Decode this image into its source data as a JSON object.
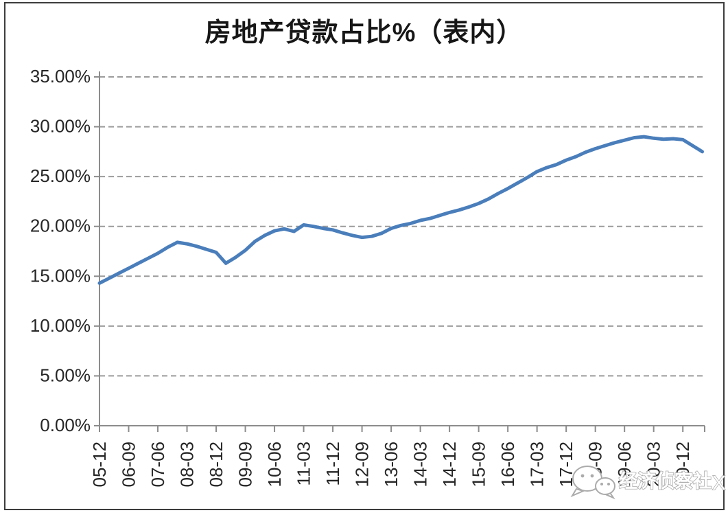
{
  "title": "房地产贷款占比%（表内）",
  "watermark": {
    "icon": "wechat-icon",
    "text": "经济侦察社",
    "suffix": "X"
  },
  "colors": {
    "line": "#4a7ebb",
    "grid": "#9b9b9b",
    "axis": "#8c8c8c",
    "tick_label": "#262626",
    "frame": "#3c3c3c",
    "watermark_outline": "#ababab",
    "watermark_fill": "#ffffff"
  },
  "chart_data": {
    "type": "line",
    "title": "房地产贷款占比%（表内）",
    "xlabel": "",
    "ylabel": "",
    "unit": "percent",
    "ylim": [
      0,
      35
    ],
    "grid": "horizontal-dashed",
    "legend": "none",
    "y_ticks": [
      "0.00%",
      "5.00%",
      "10.00%",
      "15.00%",
      "20.00%",
      "25.00%",
      "30.00%",
      "35.00%"
    ],
    "x_tick_every": 3,
    "x_tick_labels": [
      "05-12",
      "06-09",
      "07-06",
      "08-03",
      "08-12",
      "09-09",
      "10-06",
      "11-03",
      "11-12",
      "12-09",
      "13-06",
      "14-03",
      "14-12",
      "15-09",
      "16-06",
      "17-03",
      "17-12",
      "18-09",
      "19-06",
      "20-03",
      "20-12"
    ],
    "x": [
      "05-12",
      "06-03",
      "06-06",
      "06-09",
      "06-12",
      "07-03",
      "07-06",
      "07-09",
      "07-12",
      "08-03",
      "08-06",
      "08-09",
      "08-12",
      "09-03",
      "09-06",
      "09-09",
      "09-12",
      "10-03",
      "10-06",
      "10-09",
      "10-12",
      "11-03",
      "11-06",
      "11-09",
      "11-12",
      "12-03",
      "12-06",
      "12-09",
      "12-12",
      "13-03",
      "13-06",
      "13-09",
      "13-12",
      "14-03",
      "14-06",
      "14-09",
      "14-12",
      "15-03",
      "15-06",
      "15-09",
      "15-12",
      "16-03",
      "16-06",
      "16-09",
      "16-12",
      "17-03",
      "17-06",
      "17-09",
      "17-12",
      "18-03",
      "18-06",
      "18-09",
      "18-12",
      "19-03",
      "19-06",
      "19-09",
      "19-12",
      "20-03",
      "20-06",
      "20-09",
      "20-12",
      "21-03",
      "21-06"
    ],
    "values": [
      14.3,
      14.8,
      15.3,
      15.8,
      16.3,
      16.8,
      17.3,
      17.9,
      18.4,
      18.25,
      18.0,
      17.7,
      17.4,
      16.3,
      16.9,
      17.6,
      18.5,
      19.1,
      19.55,
      19.75,
      19.5,
      20.15,
      20.0,
      19.8,
      19.65,
      19.35,
      19.1,
      18.9,
      19.0,
      19.3,
      19.8,
      20.1,
      20.3,
      20.6,
      20.8,
      21.1,
      21.4,
      21.65,
      21.95,
      22.3,
      22.75,
      23.3,
      23.8,
      24.35,
      24.9,
      25.5,
      25.9,
      26.2,
      26.65,
      27.0,
      27.45,
      27.8,
      28.1,
      28.4,
      28.65,
      28.9,
      29.0,
      28.85,
      28.75,
      28.8,
      28.7,
      28.1,
      27.5
    ]
  }
}
